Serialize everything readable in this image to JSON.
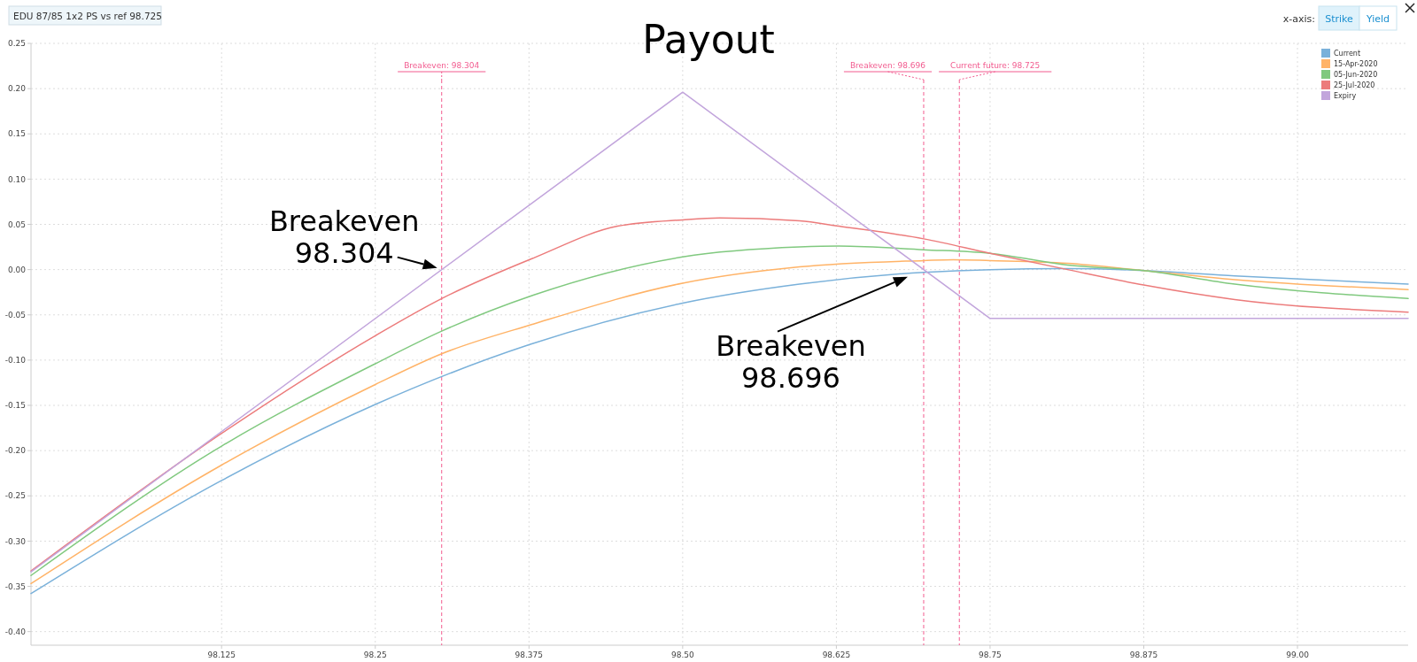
{
  "chart_data": {
    "type": "line",
    "title": "Payout",
    "xlim": [
      97.97,
      99.09
    ],
    "ylim": [
      -0.415,
      0.25
    ],
    "xticks": [
      98.125,
      98.25,
      98.375,
      {
        "value": 98.5,
        "label": "98.50"
      },
      98.625,
      98.75,
      98.875,
      {
        "value": 99.0,
        "label": "99.00"
      }
    ],
    "yticks": [
      {
        "value": 0.25,
        "label": "0.25"
      },
      {
        "value": 0.2,
        "label": "0.20"
      },
      {
        "value": 0.15,
        "label": "0.15"
      },
      {
        "value": 0.1,
        "label": "0.10"
      },
      {
        "value": 0.05,
        "label": "0.05"
      },
      {
        "value": 0,
        "label": "0.00"
      },
      {
        "value": -0.05,
        "label": "-0.05"
      },
      {
        "value": -0.1,
        "label": "-0.10"
      },
      {
        "value": -0.15,
        "label": "-0.15"
      },
      {
        "value": -0.2,
        "label": "-0.20"
      },
      {
        "value": -0.25,
        "label": "-0.25"
      },
      {
        "value": -0.3,
        "label": "-0.30"
      },
      {
        "value": -0.35,
        "label": "-0.35"
      },
      {
        "value": -0.4,
        "label": "-0.40"
      }
    ],
    "grid": true,
    "legend": "top right",
    "line_style": "solid",
    "marker": "none",
    "series": [
      {
        "name": "Current",
        "color": "#7ab1da",
        "x": [
          97.97,
          98.125,
          98.25,
          98.375,
          98.5,
          98.595,
          98.696,
          98.75,
          98.813,
          98.875,
          98.949,
          99.09
        ],
        "values": [
          -0.358,
          -0.233,
          -0.149,
          -0.083,
          -0.037,
          -0.016,
          -0.003,
          0.0,
          0.001,
          -0.001,
          -0.007,
          -0.016
        ]
      },
      {
        "name": "15-Apr-2020",
        "color": "#ffb367",
        "x": [
          97.97,
          98.125,
          98.25,
          98.304,
          98.379,
          98.5,
          98.595,
          98.696,
          98.72,
          98.75,
          98.813,
          98.875,
          98.949,
          99.09
        ],
        "values": [
          -0.347,
          -0.216,
          -0.127,
          -0.093,
          -0.06,
          -0.015,
          0.003,
          0.01,
          0.011,
          0.01,
          0.007,
          -0.001,
          -0.011,
          -0.022
        ]
      },
      {
        "name": "05-Jun-2020",
        "color": "#80c97f",
        "x": [
          97.97,
          98.125,
          98.25,
          98.304,
          98.379,
          98.5,
          98.595,
          98.627,
          98.696,
          98.75,
          98.813,
          98.875,
          98.949,
          99.09
        ],
        "values": [
          -0.338,
          -0.195,
          -0.104,
          -0.068,
          -0.028,
          0.014,
          0.025,
          0.026,
          0.022,
          0.018,
          0.005,
          -0.001,
          -0.016,
          -0.032
        ]
      },
      {
        "name": "25-Jul-2020",
        "color": "#ec7b7b",
        "x": [
          97.97,
          98.125,
          98.25,
          98.304,
          98.379,
          98.447,
          98.5,
          98.53,
          98.595,
          98.627,
          98.696,
          98.75,
          98.813,
          98.875,
          98.949,
          99.09
        ],
        "values": [
          -0.333,
          -0.181,
          -0.073,
          -0.032,
          0.013,
          0.048,
          0.055,
          0.057,
          0.054,
          0.048,
          0.034,
          0.018,
          0.0,
          -0.017,
          -0.033,
          -0.047
        ]
      },
      {
        "name": "Expiry",
        "color": "#c2a5dc",
        "x": [
          97.97,
          98.5,
          98.75,
          99.09
        ],
        "values": [
          -0.334,
          0.196,
          -0.054,
          -0.054
        ]
      }
    ],
    "ref_lines": [
      {
        "axis": "x",
        "value": 98.304,
        "label": "Breakeven: 98.304",
        "color": "#f25b8f",
        "line_style": "dashed"
      },
      {
        "axis": "x",
        "value": 98.696,
        "label": "Breakeven: 98.696",
        "color": "#f25b8f",
        "line_style": "dashed"
      },
      {
        "axis": "x",
        "value": 98.725,
        "label": "Current future: 98.725",
        "color": "#f25b8f",
        "line_style": "dashed"
      }
    ],
    "annotations": [
      "EDU 87/85 1x2 PS vs ref 98.725",
      "x-axis:",
      "Strike",
      "Yield",
      {
        "text": "Breakeven\n98.304",
        "x": 98.304,
        "y": 0
      },
      {
        "text": "Breakeven\n98.696",
        "x": 98.696,
        "y": 0
      }
    ]
  }
}
